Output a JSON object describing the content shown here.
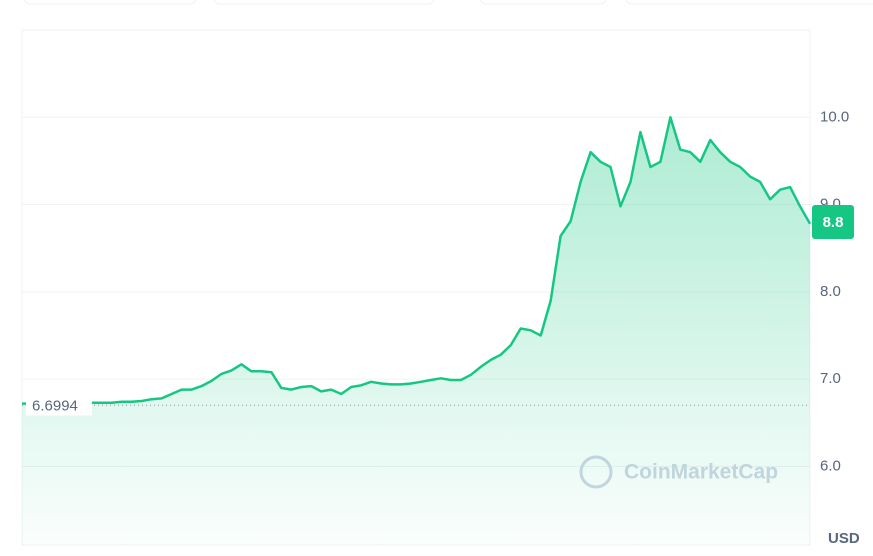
{
  "chart_data": {
    "type": "line",
    "series": [
      {
        "name": "Price",
        "color": "#16c784",
        "values": [
          6.72,
          6.72,
          6.73,
          6.73,
          6.72,
          6.72,
          6.73,
          6.73,
          6.73,
          6.73,
          6.74,
          6.74,
          6.75,
          6.77,
          6.78,
          6.83,
          6.88,
          6.88,
          6.92,
          6.98,
          7.06,
          7.1,
          7.17,
          7.09,
          7.09,
          7.08,
          6.9,
          6.88,
          6.91,
          6.92,
          6.86,
          6.88,
          6.83,
          6.91,
          6.93,
          6.97,
          6.95,
          6.94,
          6.94,
          6.95,
          6.97,
          6.99,
          7.01,
          6.99,
          6.99,
          7.05,
          7.14,
          7.22,
          7.28,
          7.39,
          7.58,
          7.56,
          7.5,
          7.9,
          8.64,
          8.81,
          9.26,
          9.6,
          9.49,
          9.43,
          8.98,
          9.26,
          9.83,
          9.43,
          9.49,
          10.0,
          9.63,
          9.6,
          9.49,
          9.74,
          9.6,
          9.49,
          9.43,
          9.32,
          9.26,
          9.06,
          9.17,
          9.2,
          8.98,
          8.78
        ]
      }
    ],
    "ylim": [
      5.1,
      11.0
    ],
    "yticks": [
      {
        "value": 6,
        "label": "6.0"
      },
      {
        "value": 7,
        "label": "7.0"
      },
      {
        "value": 8,
        "label": "8.0"
      },
      {
        "value": 9,
        "label": "9.0"
      },
      {
        "value": 10,
        "label": "10.0"
      }
    ],
    "grid": true,
    "reference_line": {
      "value": 6.6994,
      "label": "6.6994"
    },
    "current_price": {
      "value": 8.8,
      "label": "8.8"
    },
    "currency": "USD",
    "watermark": "CoinMarketCap"
  }
}
